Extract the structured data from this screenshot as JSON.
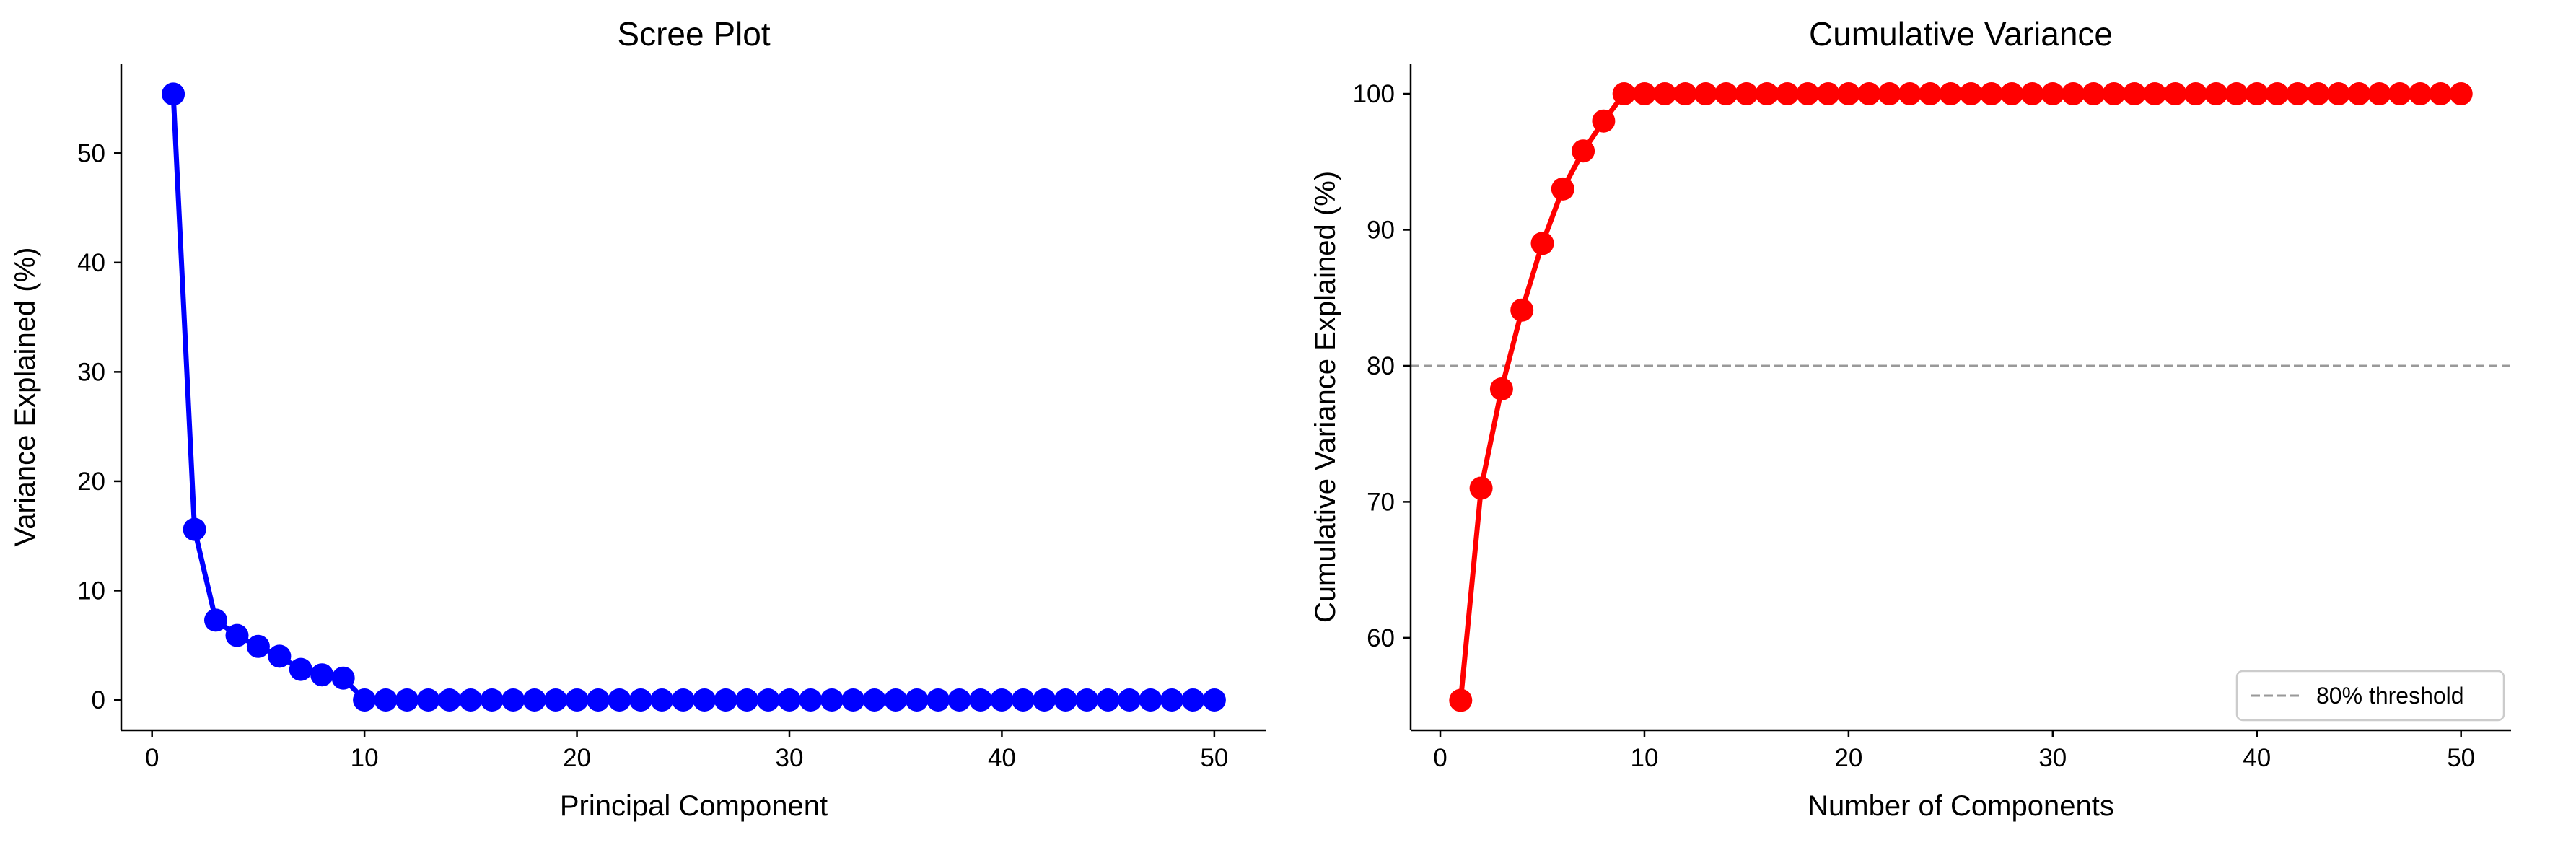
{
  "chart_data": [
    {
      "type": "line",
      "title": "Scree Plot",
      "xlabel": "Principal Component",
      "ylabel": "Variance Explained (%)",
      "xlim": [
        -1.45,
        52.45
      ],
      "ylim": [
        -2.77,
        58.2
      ],
      "xticks": [
        0,
        10,
        20,
        30,
        40,
        50
      ],
      "yticks": [
        0,
        10,
        20,
        30,
        40,
        50
      ],
      "grid": false,
      "marker": "circle",
      "series": [
        {
          "color": "#0000ff",
          "x": [
            1,
            2,
            3,
            4,
            5,
            6,
            7,
            8,
            9,
            10,
            11,
            12,
            13,
            14,
            15,
            16,
            17,
            18,
            19,
            20,
            21,
            22,
            23,
            24,
            25,
            26,
            27,
            28,
            29,
            30,
            31,
            32,
            33,
            34,
            35,
            36,
            37,
            38,
            39,
            40,
            41,
            42,
            43,
            44,
            45,
            46,
            47,
            48,
            49,
            50
          ],
          "y": [
            55.4,
            15.6,
            7.3,
            5.9,
            4.9,
            4.0,
            2.8,
            2.3,
            2.0,
            0,
            0,
            0,
            0,
            0,
            0,
            0,
            0,
            0,
            0,
            0,
            0,
            0,
            0,
            0,
            0,
            0,
            0,
            0,
            0,
            0,
            0,
            0,
            0,
            0,
            0,
            0,
            0,
            0,
            0,
            0,
            0,
            0,
            0,
            0,
            0,
            0,
            0,
            0,
            0,
            0
          ]
        }
      ]
    },
    {
      "type": "line",
      "title": "Cumulative Variance",
      "xlabel": "Number of Components",
      "ylabel": "Cumulative Variance Explained (%)",
      "xlim": [
        -1.45,
        52.45
      ],
      "ylim": [
        53.2,
        102.23
      ],
      "xticks": [
        0,
        10,
        20,
        30,
        40,
        50
      ],
      "yticks": [
        60,
        70,
        80,
        90,
        100
      ],
      "grid": false,
      "marker": "circle",
      "series": [
        {
          "color": "#ff0000",
          "x": [
            1,
            2,
            3,
            4,
            5,
            6,
            7,
            8,
            9,
            10,
            11,
            12,
            13,
            14,
            15,
            16,
            17,
            18,
            19,
            20,
            21,
            22,
            23,
            24,
            25,
            26,
            27,
            28,
            29,
            30,
            31,
            32,
            33,
            34,
            35,
            36,
            37,
            38,
            39,
            40,
            41,
            42,
            43,
            44,
            45,
            46,
            47,
            48,
            49,
            50
          ],
          "y": [
            55.4,
            71.0,
            78.3,
            84.1,
            89.0,
            93.0,
            95.8,
            98.0,
            100,
            100,
            100,
            100,
            100,
            100,
            100,
            100,
            100,
            100,
            100,
            100,
            100,
            100,
            100,
            100,
            100,
            100,
            100,
            100,
            100,
            100,
            100,
            100,
            100,
            100,
            100,
            100,
            100,
            100,
            100,
            100,
            100,
            100,
            100,
            100,
            100,
            100,
            100,
            100,
            100,
            100
          ]
        }
      ],
      "reference_lines": [
        {
          "orientation": "horizontal",
          "y": 80,
          "style": "dashed",
          "color": "#999999",
          "label": "80% threshold"
        }
      ],
      "legend": {
        "placement": "bottom-right",
        "entries": [
          "80% threshold"
        ]
      }
    }
  ]
}
